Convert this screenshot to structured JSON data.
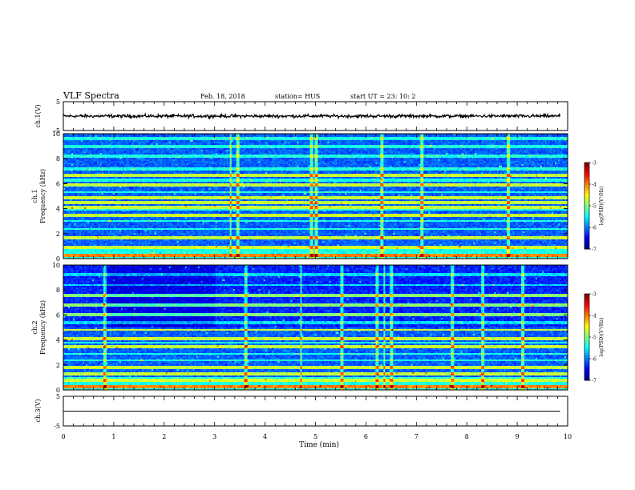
{
  "header": {
    "title": "VLF Spectra",
    "date": "Feb. 18, 2018",
    "station": "station= HUS",
    "start": "start  UT =   23: 10: 2"
  },
  "chart_data": [
    {
      "type": "line",
      "name": "ch1-waveform",
      "ylabel": "ch.1(V)",
      "ylim": [
        -5,
        5
      ],
      "yticks": [
        "5",
        "-5"
      ],
      "baseline": 0,
      "amplitude": 0.45,
      "x_end_min": 9.85
    },
    {
      "type": "heatmap",
      "name": "ch1-spectrogram",
      "ylabel_top": "ch.1",
      "ylabel": "Frequency (kHz)",
      "ylim": [
        0,
        10
      ],
      "yticks": [
        "0",
        "2",
        "4",
        "6",
        "8",
        "10"
      ],
      "colorbar": {
        "label": "log(PSD)(V²/Hz)",
        "range": [
          -7,
          -3
        ],
        "ticks": [
          "-3",
          "-4",
          "-5",
          "-6",
          "-7"
        ]
      },
      "strong_bands_khz": [
        0.3,
        1.7,
        3.5,
        4.1,
        4.45,
        4.9,
        5.9,
        6.7
      ],
      "weak_bands_khz": [
        0.9,
        2.4,
        3.0,
        3.9,
        5.3,
        6.3,
        7.2,
        8.2,
        9.0,
        9.6
      ],
      "strong_impulses_min": [
        3.3,
        3.45,
        4.9,
        5.0,
        6.3,
        7.1,
        8.8
      ]
    },
    {
      "type": "heatmap",
      "name": "ch2-spectrogram",
      "ylabel_top": "ch.2",
      "ylabel": "Frequency (kHz)",
      "ylim": [
        0,
        10
      ],
      "yticks": [
        "0",
        "2",
        "4",
        "6",
        "8",
        "10"
      ],
      "colorbar": {
        "label": "log(PSD)(V²/Hz)",
        "range": [
          -7,
          -3
        ],
        "ticks": [
          "-3",
          "-4",
          "-5",
          "-6",
          "-7"
        ]
      },
      "strong_bands_khz": [
        0.3,
        1.3,
        1.8,
        3.5,
        4.1,
        4.8,
        6.0,
        6.8,
        7.6
      ],
      "weak_bands_khz": [
        0.8,
        2.4,
        2.9,
        3.8,
        5.4,
        8.4,
        9.2
      ],
      "strong_impulses_min": [
        0.8,
        3.6,
        4.7,
        5.5,
        6.2,
        6.35,
        6.5,
        7.7,
        8.3,
        9.1
      ]
    },
    {
      "type": "line",
      "name": "ch3-waveform",
      "ylabel": "ch.3(V)",
      "ylim": [
        -5,
        5
      ],
      "yticks": [
        "5",
        "-5"
      ],
      "baseline": 0,
      "amplitude": 0,
      "x_end_min": 9.85
    }
  ],
  "xaxis": {
    "label": "Time (min)",
    "xlim": [
      0,
      10
    ],
    "ticks": [
      "0",
      "1",
      "2",
      "3",
      "4",
      "5",
      "6",
      "7",
      "8",
      "9",
      "10"
    ]
  }
}
